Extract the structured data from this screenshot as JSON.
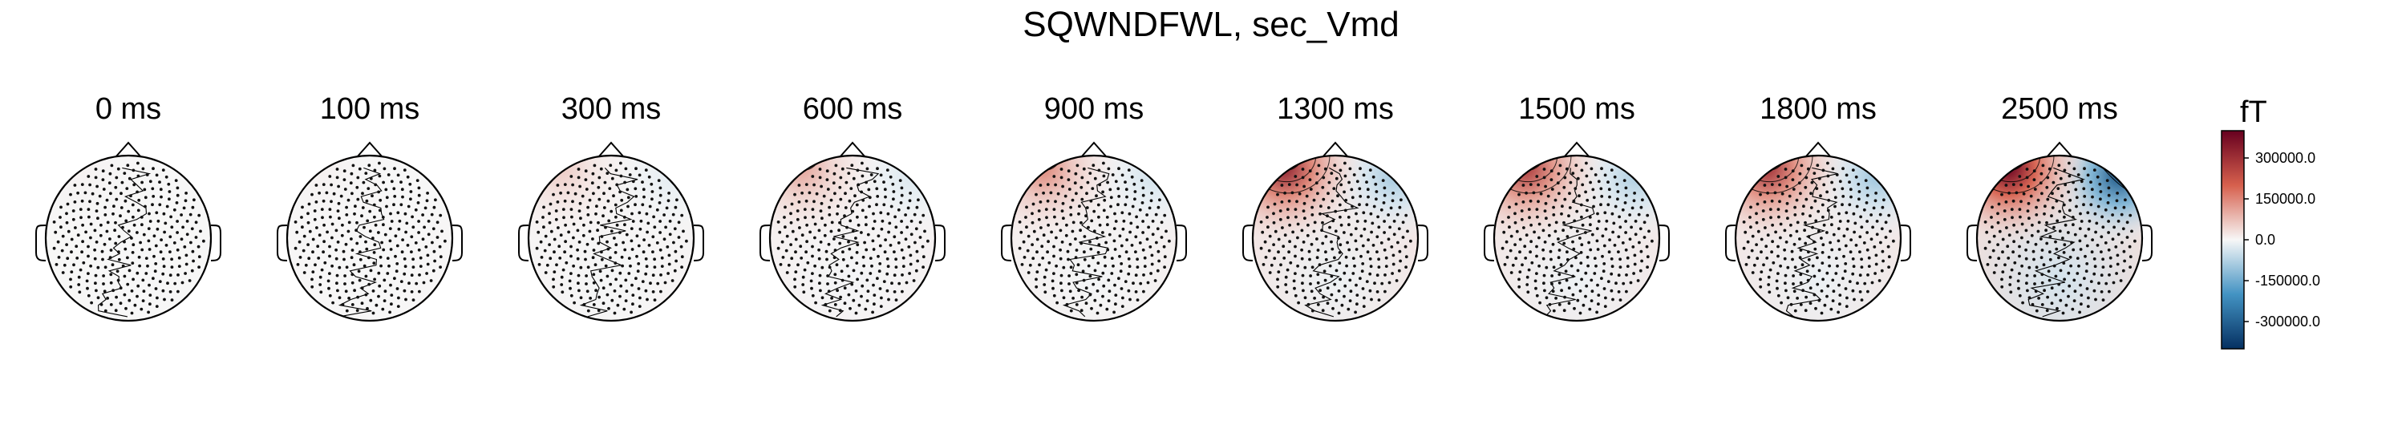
{
  "chart_data": {
    "type": "heatmap",
    "subtype": "meg-topomap-timeseries",
    "title": "SQWNDFWL, sec_Vmd",
    "unit": "fT",
    "time_unit": "ms",
    "colormap": "RdBu_r",
    "vlim": [
      -400000,
      400000
    ],
    "colorbar": {
      "label": "fT",
      "ticks": [
        300000,
        150000,
        0,
        -150000,
        -300000
      ],
      "tick_labels": [
        "300000.0",
        "150000.0",
        "0.0",
        "-150000.0",
        "-300000.0"
      ]
    },
    "colors": {
      "max": "#67001f",
      "pos_mid": "#d6604d",
      "neutral": "#f7f7f7",
      "neg_mid": "#4393c3",
      "min": "#053061"
    },
    "maps": [
      {
        "time": "0 ms",
        "frontal_left_peak": 8000,
        "frontal_right_peak": 0
      },
      {
        "time": "100 ms",
        "frontal_left_peak": 9000,
        "frontal_right_peak": 0
      },
      {
        "time": "300 ms",
        "frontal_left_peak": 60000,
        "frontal_right_peak": -20000
      },
      {
        "time": "600 ms",
        "frontal_left_peak": 110000,
        "frontal_right_peak": -30000
      },
      {
        "time": "900 ms",
        "frontal_left_peak": 150000,
        "frontal_right_peak": -40000
      },
      {
        "time": "1300 ms",
        "frontal_left_peak": 330000,
        "frontal_right_peak": -90000
      },
      {
        "time": "1500 ms",
        "frontal_left_peak": 280000,
        "frontal_right_peak": -80000
      },
      {
        "time": "1800 ms",
        "frontal_left_peak": 300000,
        "frontal_right_peak": -100000
      },
      {
        "time": "2500 ms",
        "frontal_left_peak": 420000,
        "frontal_right_peak": -320000
      }
    ]
  }
}
